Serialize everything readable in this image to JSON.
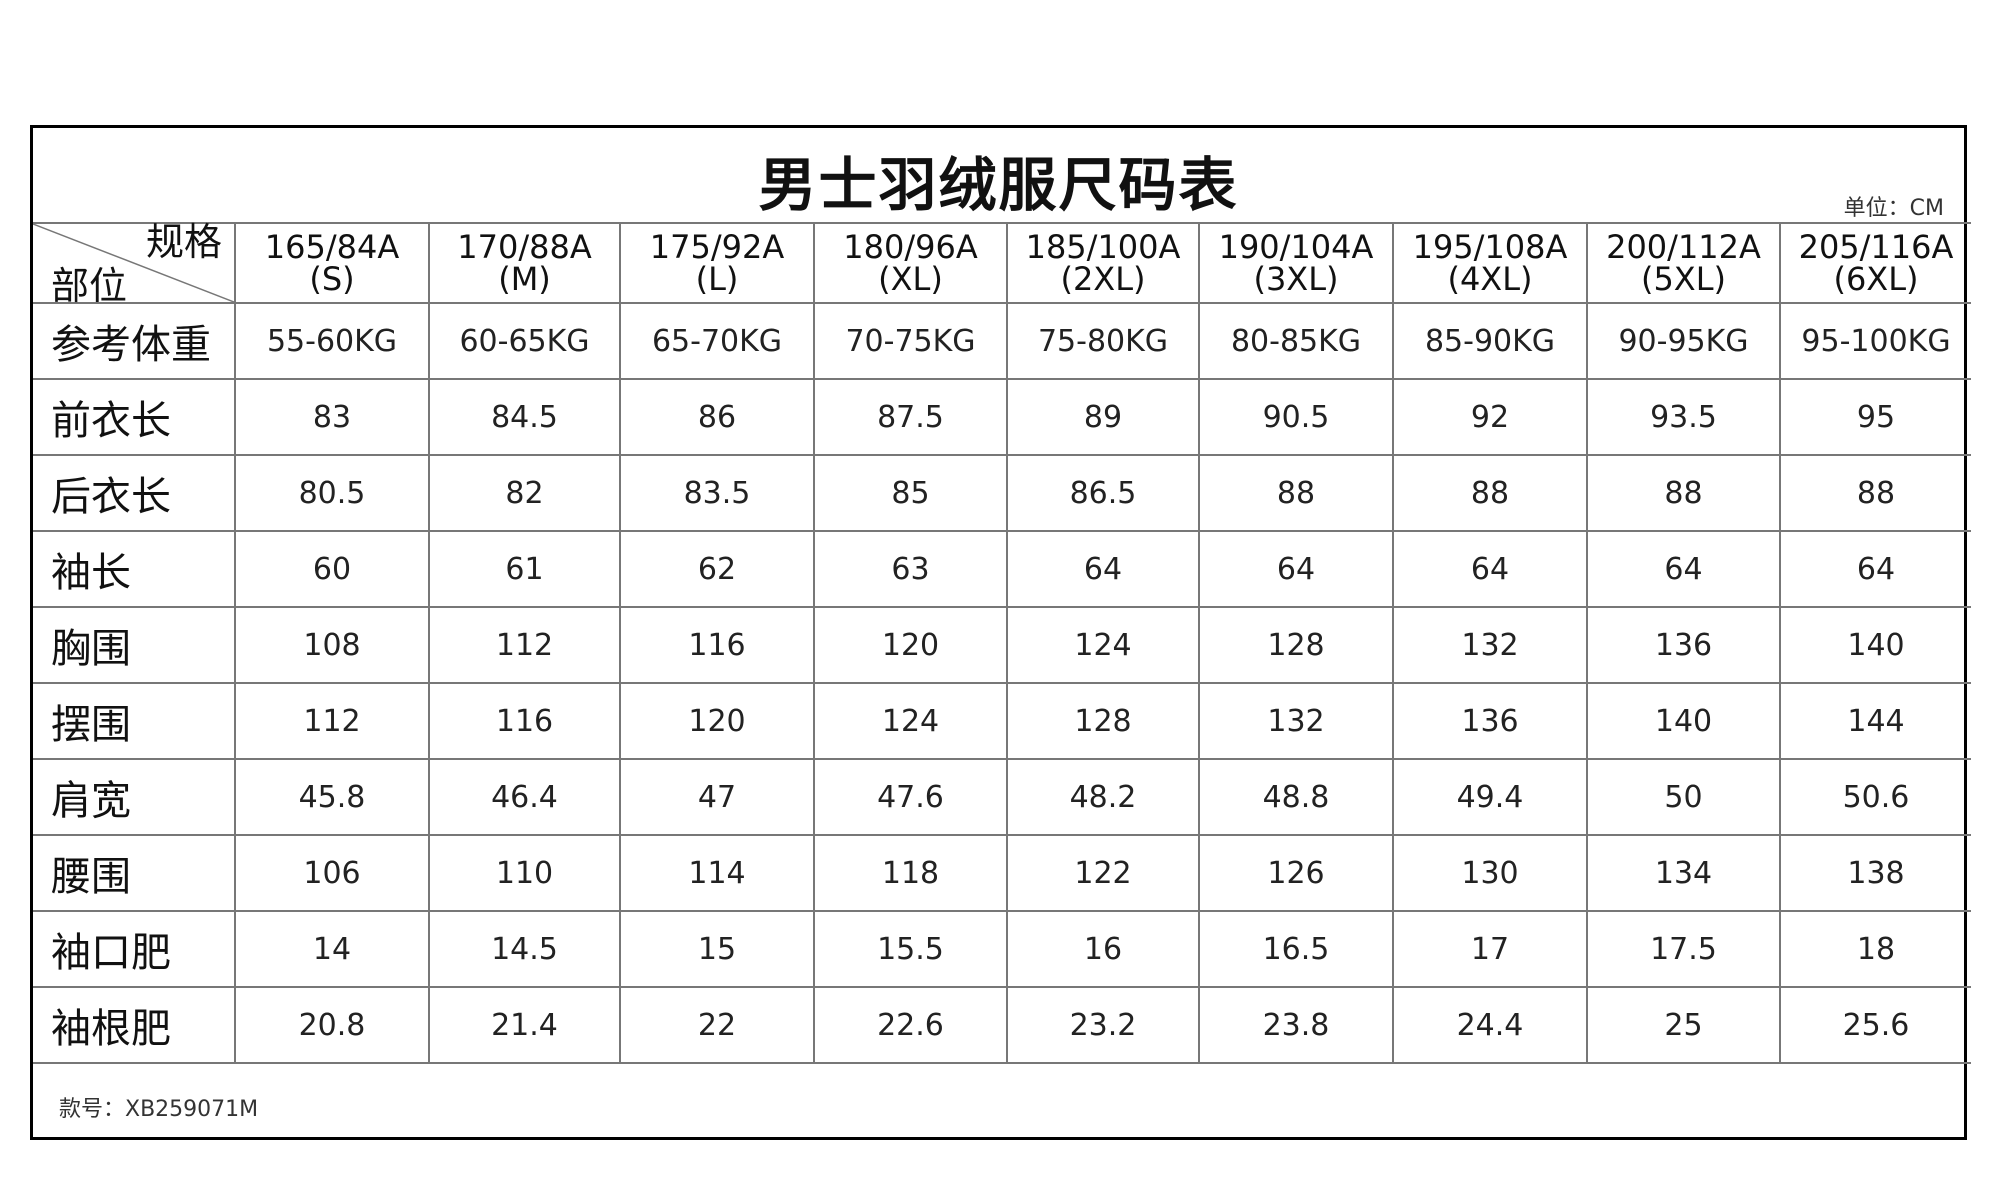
{
  "title": "男士羽绒服尺码表",
  "unit": "单位：CM",
  "corner": {
    "top": "规格",
    "bottom": "部位"
  },
  "sizes": [
    {
      "spec": "165/84A",
      "label": "(S)"
    },
    {
      "spec": "170/88A",
      "label": "(M)"
    },
    {
      "spec": "175/92A",
      "label": "(L)"
    },
    {
      "spec": "180/96A",
      "label": "(XL)"
    },
    {
      "spec": "185/100A",
      "label": "(2XL)"
    },
    {
      "spec": "190/104A",
      "label": "(3XL)"
    },
    {
      "spec": "195/108A",
      "label": "(4XL)"
    },
    {
      "spec": "200/112A",
      "label": "(5XL)"
    },
    {
      "spec": "205/116A",
      "label": "(6XL)"
    }
  ],
  "rows": [
    {
      "name": "参考体重",
      "values": [
        "55-60KG",
        "60-65KG",
        "65-70KG",
        "70-75KG",
        "75-80KG",
        "80-85KG",
        "85-90KG",
        "90-95KG",
        "95-100KG"
      ]
    },
    {
      "name": "前衣长",
      "values": [
        "83",
        "84.5",
        "86",
        "87.5",
        "89",
        "90.5",
        "92",
        "93.5",
        "95"
      ]
    },
    {
      "name": "后衣长",
      "values": [
        "80.5",
        "82",
        "83.5",
        "85",
        "86.5",
        "88",
        "88",
        "88",
        "88"
      ]
    },
    {
      "name": "袖长",
      "values": [
        "60",
        "61",
        "62",
        "63",
        "64",
        "64",
        "64",
        "64",
        "64"
      ]
    },
    {
      "name": "胸围",
      "values": [
        "108",
        "112",
        "116",
        "120",
        "124",
        "128",
        "132",
        "136",
        "140"
      ]
    },
    {
      "name": "摆围",
      "values": [
        "112",
        "116",
        "120",
        "124",
        "128",
        "132",
        "136",
        "140",
        "144"
      ]
    },
    {
      "name": "肩宽",
      "values": [
        "45.8",
        "46.4",
        "47",
        "47.6",
        "48.2",
        "48.8",
        "49.4",
        "50",
        "50.6"
      ]
    },
    {
      "name": "腰围",
      "values": [
        "106",
        "110",
        "114",
        "118",
        "122",
        "126",
        "130",
        "134",
        "138"
      ]
    },
    {
      "name": "袖口肥",
      "values": [
        "14",
        "14.5",
        "15",
        "15.5",
        "16",
        "16.5",
        "17",
        "17.5",
        "18"
      ]
    },
    {
      "name": "袖根肥",
      "values": [
        "20.8",
        "21.4",
        "22",
        "22.6",
        "23.2",
        "23.8",
        "24.4",
        "25",
        "25.6"
      ]
    }
  ],
  "footer": "款号：XB259071M"
}
